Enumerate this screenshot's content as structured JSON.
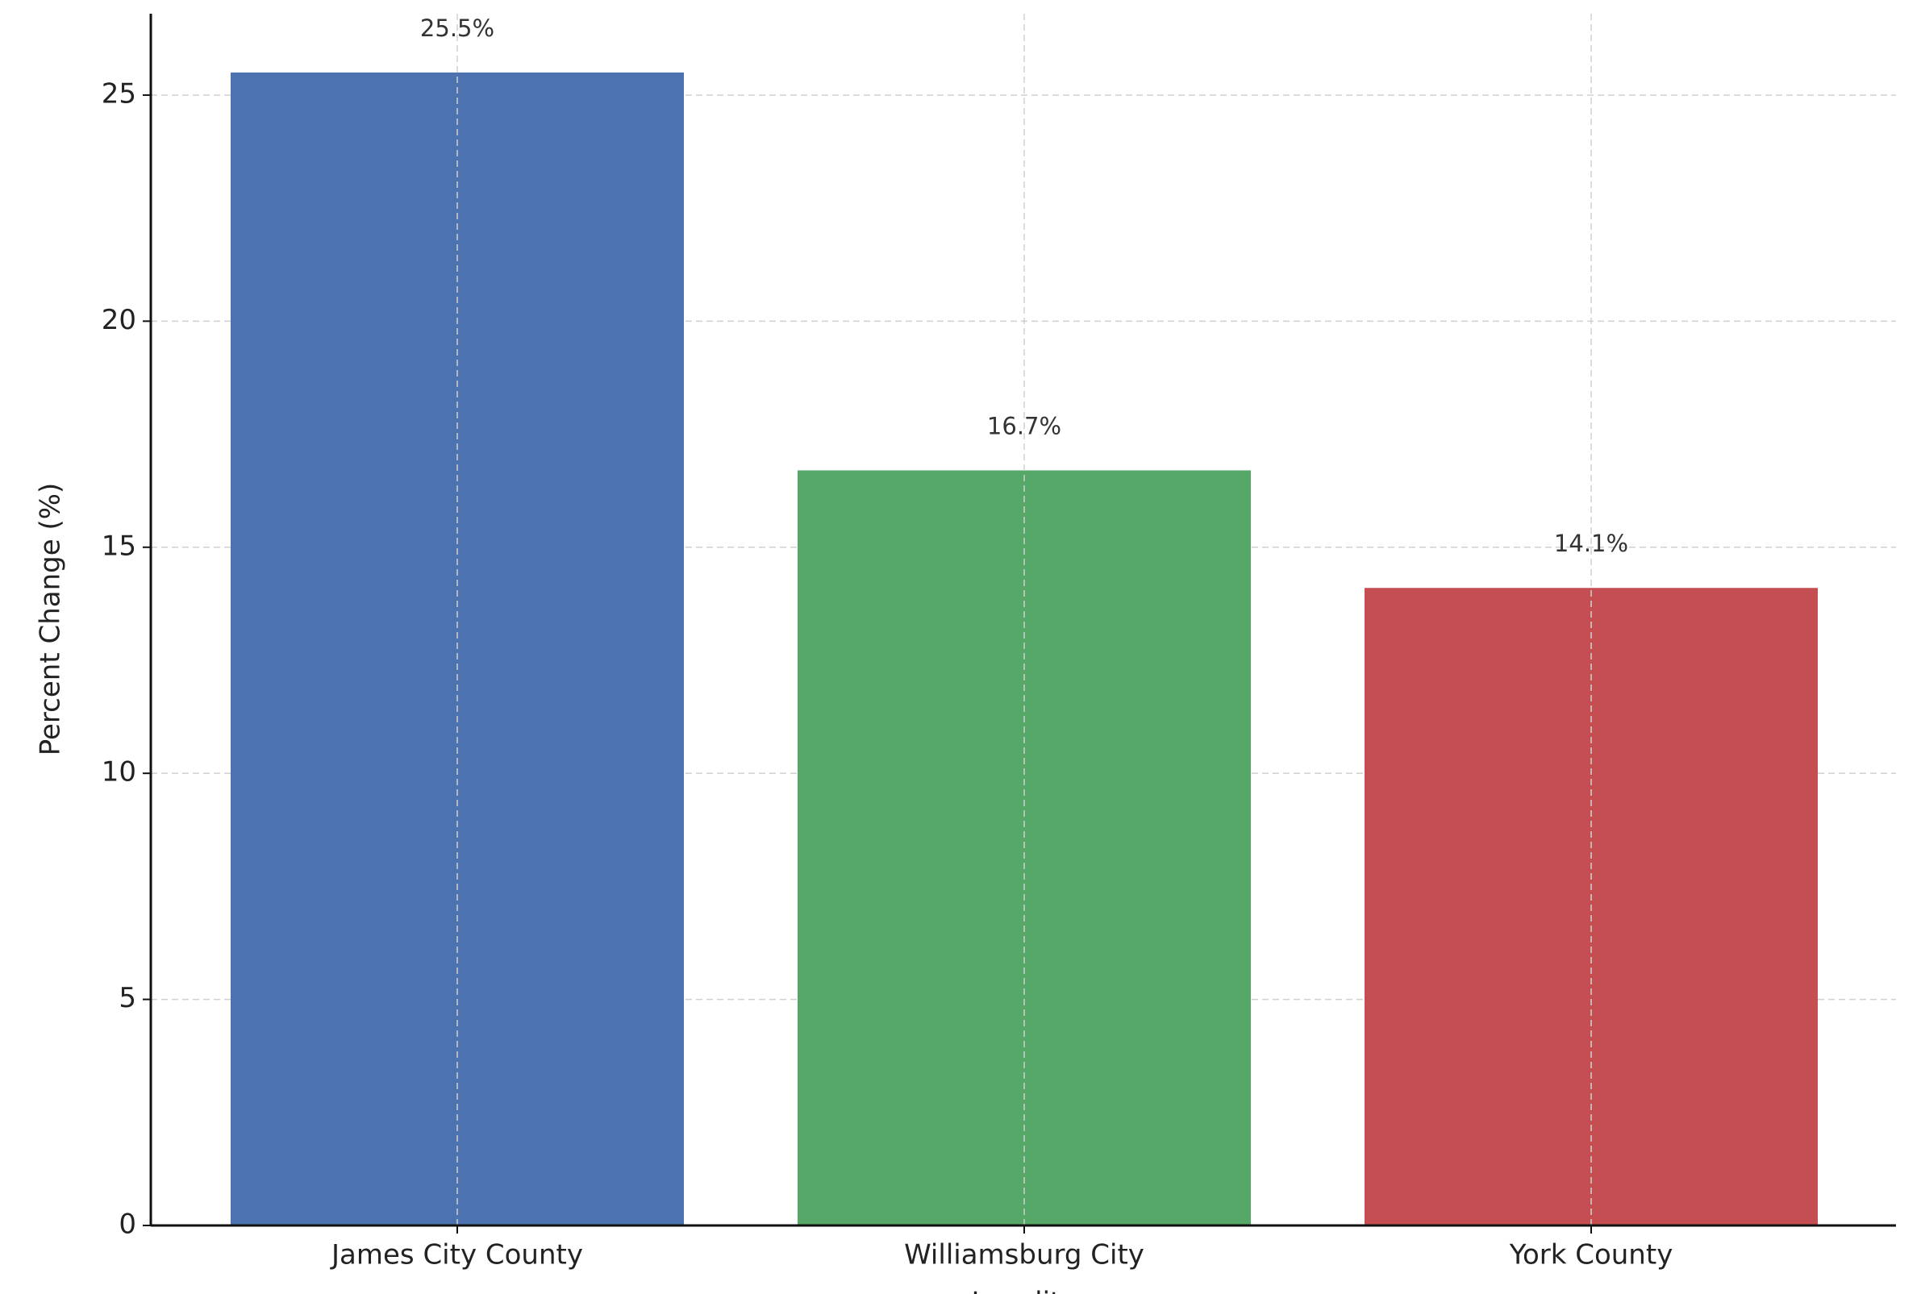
{
  "chart_data": {
    "type": "bar",
    "xlabel": "Locality",
    "ylabel": "Percent Change (%)",
    "categories": [
      "James City County",
      "Williamsburg City",
      "York County"
    ],
    "values": [
      25.5,
      16.7,
      14.1
    ],
    "value_labels": [
      "25.5%",
      "16.7%",
      "14.1%"
    ],
    "colors": [
      "#4c72b0",
      "#55a868",
      "#c44e52"
    ],
    "ylim": [
      0,
      26.8
    ],
    "yticks": [
      0,
      5,
      10,
      15,
      20,
      25
    ],
    "grid": true
  }
}
